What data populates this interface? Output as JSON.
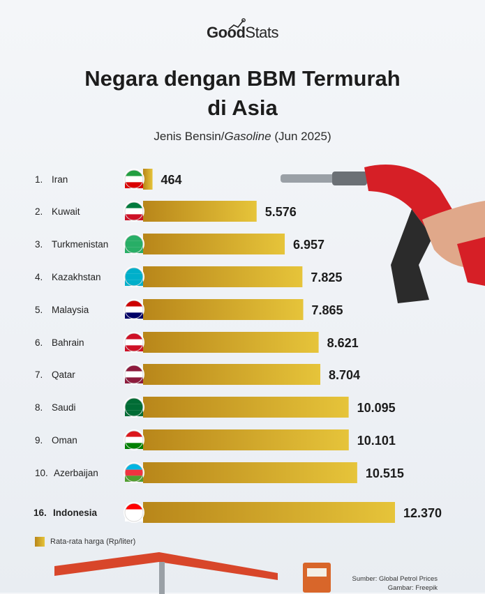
{
  "header": {
    "logo_good": "Good",
    "logo_stats": "Stats",
    "title_line1": "Negara dengan BBM Termurah",
    "title_line2": "di Asia",
    "subtitle_pre": "Jenis Bensin/",
    "subtitle_italic": "Gasoline",
    "subtitle_post": " (Jun 2025)"
  },
  "chart_data": {
    "type": "bar",
    "orientation": "horizontal",
    "categories": [
      "Iran",
      "Kuwait",
      "Turkmenistan",
      "Kazakhstan",
      "Malaysia",
      "Bahrain",
      "Qatar",
      "Saudi",
      "Oman",
      "Azerbaijan",
      "Indonesia"
    ],
    "ranks": [
      "1.",
      "2.",
      "3.",
      "4.",
      "5.",
      "6.",
      "7.",
      "8.",
      "9.",
      "10.",
      "16."
    ],
    "values": [
      464,
      5576,
      6957,
      7825,
      7865,
      8621,
      8704,
      10095,
      10101,
      10515,
      12370
    ],
    "value_labels": [
      "464",
      "5.576",
      "6.957",
      "7.825",
      "7.865",
      "8.621",
      "8.704",
      "10.095",
      "10.101",
      "10.515",
      "12.370"
    ],
    "highlight": "Indonesia",
    "bar_color_start": "#b8861a",
    "bar_color_end": "#e6c43a",
    "legend": "Rata-rata harga (Rp/liter)"
  },
  "footer": {
    "source_line1": "Sumber: Global Petrol Prices",
    "source_line2": "Gambar: Freepik"
  }
}
